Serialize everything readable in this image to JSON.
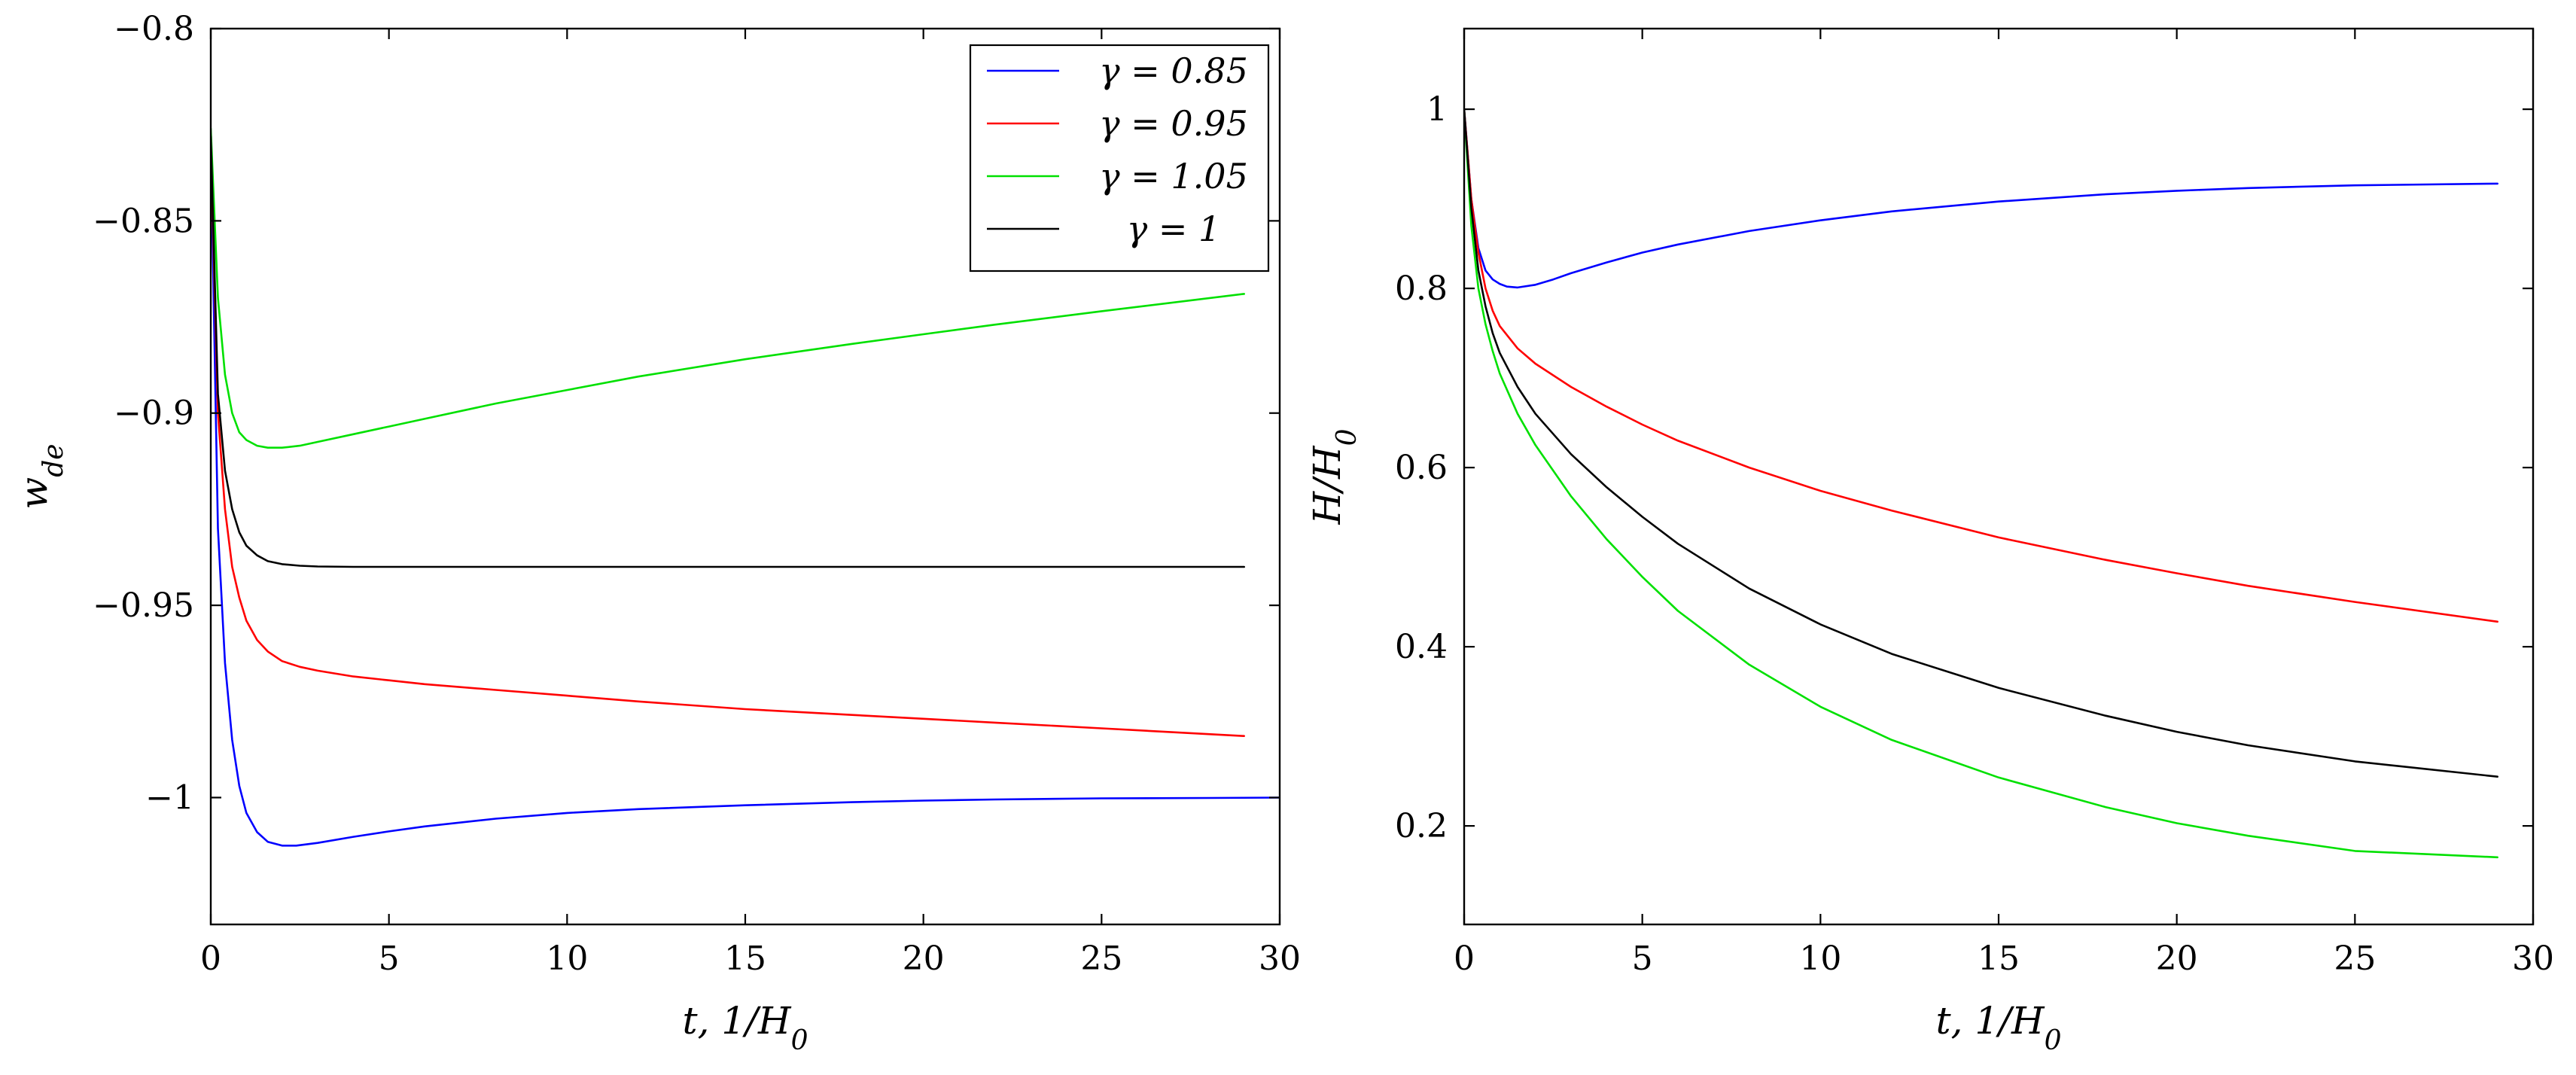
{
  "chart_data": [
    {
      "type": "line",
      "title": "",
      "xlabel": "t, 1/H",
      "xlabel_sub": "0",
      "ylabel": "w",
      "ylabel_sub": "de",
      "xlim": [
        0,
        30
      ],
      "ylim": [
        -1.033,
        -0.8
      ],
      "grid": false,
      "legend_position": "top-right",
      "x_ticks": [
        0,
        5,
        10,
        15,
        20,
        25,
        30
      ],
      "x_tick_labels": [
        "0",
        "5",
        "10",
        "15",
        "20",
        "25",
        "30"
      ],
      "y_ticks": [
        -0.8,
        -0.85,
        -0.9,
        -0.95,
        -1.0
      ],
      "y_tick_labels": [
        "−0.8",
        "−0.85",
        "−0.9",
        "−0.95",
        "−1"
      ],
      "series": [
        {
          "name": "γ = 0.85",
          "color": "#0000ff",
          "x": [
            0,
            0.2,
            0.4,
            0.6,
            0.8,
            1.0,
            1.3,
            1.6,
            2.0,
            2.4,
            3,
            4,
            5,
            6,
            8,
            10,
            12,
            15,
            18,
            20,
            22,
            25,
            28,
            30
          ],
          "y": [
            -0.83,
            -0.93,
            -0.965,
            -0.985,
            -0.997,
            -1.004,
            -1.009,
            -1.0115,
            -1.0125,
            -1.0125,
            -1.0118,
            -1.0102,
            -1.0088,
            -1.0075,
            -1.0055,
            -1.004,
            -1.003,
            -1.002,
            -1.0012,
            -1.0008,
            -1.0005,
            -1.0002,
            -1.0001,
            -1.0
          ]
        },
        {
          "name": "γ = 0.95",
          "color": "#ff0000",
          "x": [
            0,
            0.2,
            0.4,
            0.6,
            0.8,
            1.0,
            1.3,
            1.6,
            2.0,
            2.5,
            3,
            4,
            5,
            6,
            8,
            10,
            12,
            15,
            18,
            20,
            22,
            25,
            29
          ],
          "y": [
            -0.83,
            -0.9,
            -0.925,
            -0.94,
            -0.948,
            -0.954,
            -0.959,
            -0.962,
            -0.9645,
            -0.966,
            -0.967,
            -0.9685,
            -0.9695,
            -0.9705,
            -0.972,
            -0.9735,
            -0.975,
            -0.977,
            -0.9785,
            -0.9795,
            -0.9805,
            -0.982,
            -0.984
          ]
        },
        {
          "name": "γ = 1.05",
          "color": "#00e000",
          "x": [
            0,
            0.2,
            0.4,
            0.6,
            0.8,
            1.0,
            1.3,
            1.6,
            2.0,
            2.5,
            3,
            4,
            5,
            6,
            8,
            10,
            12,
            15,
            18,
            20,
            22,
            25,
            29
          ],
          "y": [
            -0.826,
            -0.87,
            -0.89,
            -0.9,
            -0.905,
            -0.907,
            -0.9085,
            -0.909,
            -0.909,
            -0.9085,
            -0.9075,
            -0.9055,
            -0.9035,
            -0.9015,
            -0.8975,
            -0.894,
            -0.8905,
            -0.886,
            -0.882,
            -0.8795,
            -0.877,
            -0.8735,
            -0.869
          ]
        },
        {
          "name": "γ = 1",
          "color": "#000000",
          "x": [
            0,
            0.2,
            0.4,
            0.6,
            0.8,
            1.0,
            1.3,
            1.6,
            2.0,
            2.5,
            3,
            4,
            5,
            10,
            15,
            20,
            25,
            29
          ],
          "y": [
            -0.828,
            -0.895,
            -0.915,
            -0.925,
            -0.931,
            -0.9345,
            -0.937,
            -0.9385,
            -0.9393,
            -0.9397,
            -0.9399,
            -0.94,
            -0.94,
            -0.94,
            -0.94,
            -0.94,
            -0.94,
            -0.94
          ]
        }
      ]
    },
    {
      "type": "line",
      "title": "",
      "xlabel": "t, 1/H",
      "xlabel_sub": "0",
      "ylabel": "H/H",
      "ylabel_sub": "0",
      "xlim": [
        0,
        30
      ],
      "ylim": [
        0.09,
        1.09
      ],
      "grid": false,
      "x_ticks": [
        0,
        5,
        10,
        15,
        20,
        25,
        30
      ],
      "x_tick_labels": [
        "0",
        "5",
        "10",
        "15",
        "20",
        "25",
        "30"
      ],
      "y_ticks": [
        1,
        0.8,
        0.6,
        0.4,
        0.2
      ],
      "y_tick_labels": [
        "1",
        "0.8",
        "0.6",
        "0.4",
        "0.2"
      ],
      "series": [
        {
          "name": "γ = 0.85",
          "color": "#0000ff",
          "x": [
            0,
            0.2,
            0.4,
            0.6,
            0.8,
            1.0,
            1.2,
            1.5,
            2.0,
            2.5,
            3,
            4,
            5,
            6,
            8,
            10,
            12,
            15,
            18,
            20,
            22,
            25,
            29
          ],
          "y": [
            1.0,
            0.9,
            0.845,
            0.82,
            0.81,
            0.805,
            0.802,
            0.801,
            0.804,
            0.81,
            0.817,
            0.829,
            0.84,
            0.849,
            0.864,
            0.876,
            0.886,
            0.897,
            0.905,
            0.909,
            0.912,
            0.915,
            0.917
          ]
        },
        {
          "name": "γ = 0.95",
          "color": "#ff0000",
          "x": [
            0,
            0.2,
            0.4,
            0.6,
            0.8,
            1.0,
            1.5,
            2.0,
            3,
            4,
            5,
            6,
            8,
            10,
            12,
            15,
            18,
            20,
            22,
            25,
            29
          ],
          "y": [
            1.0,
            0.9,
            0.84,
            0.8,
            0.775,
            0.758,
            0.733,
            0.716,
            0.69,
            0.668,
            0.648,
            0.63,
            0.6,
            0.574,
            0.552,
            0.522,
            0.497,
            0.482,
            0.468,
            0.45,
            0.428
          ]
        },
        {
          "name": "γ = 1.05",
          "color": "#00e000",
          "x": [
            0,
            0.2,
            0.4,
            0.6,
            0.8,
            1.0,
            1.5,
            2.0,
            3,
            4,
            5,
            6,
            8,
            10,
            12,
            15,
            18,
            20,
            22,
            25,
            29
          ],
          "y": [
            1.0,
            0.87,
            0.8,
            0.76,
            0.73,
            0.705,
            0.66,
            0.625,
            0.568,
            0.52,
            0.478,
            0.44,
            0.38,
            0.333,
            0.296,
            0.254,
            0.221,
            0.203,
            0.189,
            0.172,
            0.165
          ]
        },
        {
          "name": "γ = 1",
          "color": "#000000",
          "x": [
            0,
            0.2,
            0.4,
            0.6,
            0.8,
            1.0,
            1.5,
            2.0,
            3,
            4,
            5,
            6,
            8,
            10,
            12,
            15,
            18,
            20,
            22,
            25,
            29
          ],
          "y": [
            1.0,
            0.89,
            0.82,
            0.78,
            0.75,
            0.728,
            0.69,
            0.66,
            0.615,
            0.578,
            0.545,
            0.515,
            0.465,
            0.425,
            0.392,
            0.354,
            0.323,
            0.305,
            0.29,
            0.272,
            0.255
          ]
        }
      ]
    }
  ]
}
